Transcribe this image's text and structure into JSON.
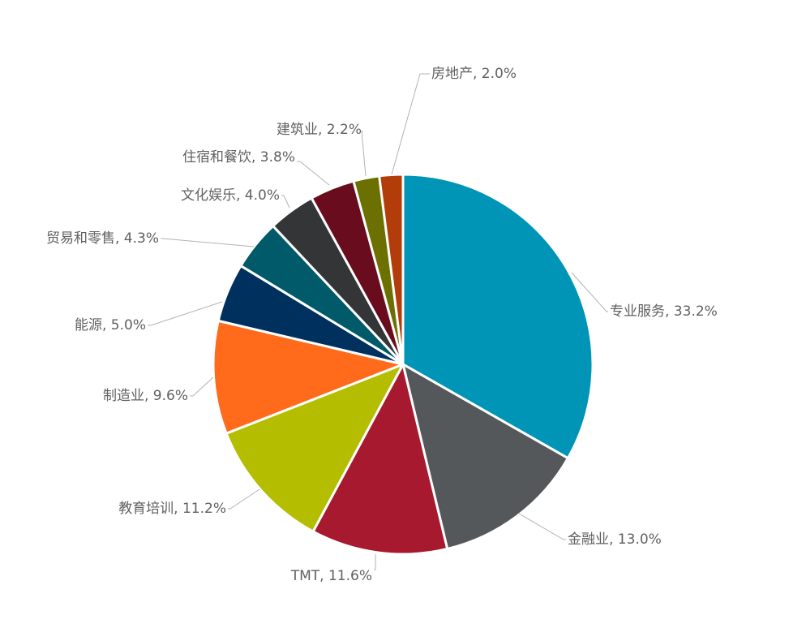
{
  "chart_data": {
    "type": "pie",
    "categories": [
      "专业服务",
      "金融业",
      "TMT",
      "教育培训",
      "制造业",
      "能源",
      "贸易和零售",
      "文化娱乐",
      "住宿和餐饮",
      "建筑业",
      "房地产"
    ],
    "values": [
      33.2,
      13.0,
      11.6,
      11.2,
      9.6,
      5.0,
      4.3,
      4.0,
      3.8,
      2.2,
      2.0
    ],
    "labels": [
      "专业服务, 33.2%",
      "金融业, 13.0%",
      "TMT, 11.6%",
      "教育培训, 11.2%",
      "制造业, 9.6%",
      "能源, 5.0%",
      "贸易和零售, 4.3%",
      "文化娱乐, 4.0%",
      "住宿和餐饮, 3.8%",
      "建筑业, 2.2%",
      "房地产, 2.0%"
    ],
    "colors": [
      "#0095b6",
      "#55585b",
      "#a6192e",
      "#b5bd00",
      "#ff6a1b",
      "#00305e",
      "#005a6a",
      "#333537",
      "#680c1e",
      "#6b7000",
      "#b33d0a"
    ],
    "start_angle": "12 o'clock",
    "direction": "clockwise"
  }
}
